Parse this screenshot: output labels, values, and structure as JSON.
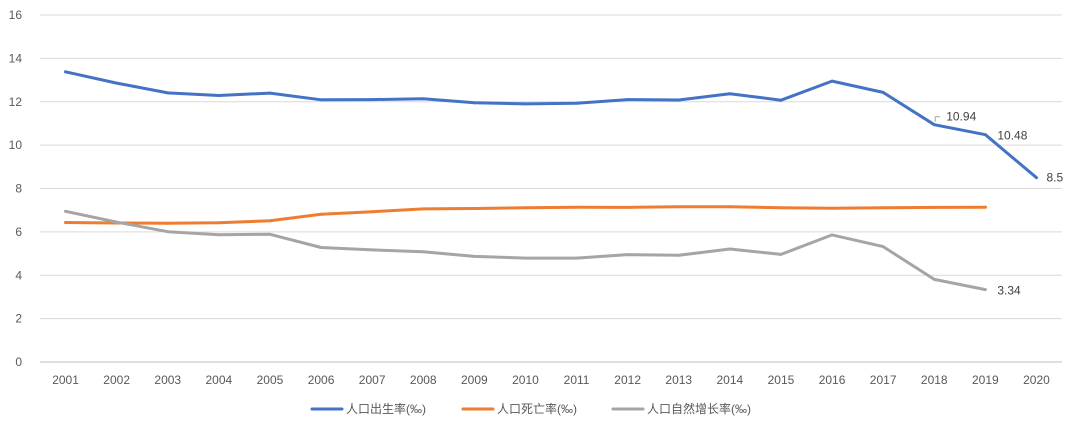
{
  "chart_data": {
    "type": "line",
    "title": "",
    "xlabel": "",
    "ylabel": "",
    "x": [
      "2001",
      "2002",
      "2003",
      "2004",
      "2005",
      "2006",
      "2007",
      "2008",
      "2009",
      "2010",
      "2011",
      "2012",
      "2013",
      "2014",
      "2015",
      "2016",
      "2017",
      "2018",
      "2019",
      "2020"
    ],
    "ylim": [
      0,
      16
    ],
    "yticks": [
      "0",
      "2",
      "4",
      "6",
      "8",
      "10",
      "12",
      "14",
      "16"
    ],
    "grid": "horizontal",
    "legend_position": "bottom",
    "series": [
      {
        "name": "人口出生率(‰)",
        "color": "#4472C4",
        "values": [
          13.38,
          12.86,
          12.41,
          12.29,
          12.4,
          12.09,
          12.1,
          12.14,
          11.95,
          11.9,
          11.93,
          12.1,
          12.08,
          12.37,
          12.07,
          12.95,
          12.43,
          10.94,
          10.48,
          8.5
        ]
      },
      {
        "name": "人口死亡率(‰)",
        "color": "#ED7D31",
        "values": [
          6.43,
          6.41,
          6.4,
          6.42,
          6.51,
          6.81,
          6.93,
          7.06,
          7.08,
          7.11,
          7.14,
          7.13,
          7.16,
          7.16,
          7.11,
          7.09,
          7.11,
          7.13,
          7.14,
          null
        ]
      },
      {
        "name": "人口自然增长率(‰)",
        "color": "#A5A5A5",
        "values": [
          6.95,
          6.45,
          6.01,
          5.87,
          5.89,
          5.28,
          5.17,
          5.08,
          4.87,
          4.79,
          4.79,
          4.95,
          4.92,
          5.21,
          4.96,
          5.86,
          5.32,
          3.81,
          3.34,
          null
        ]
      }
    ],
    "annotations": [
      {
        "series": 0,
        "x": "2018",
        "text": "10.94"
      },
      {
        "series": 0,
        "x": "2019",
        "text": "10.48"
      },
      {
        "series": 0,
        "x": "2020",
        "text": "8.5"
      },
      {
        "series": 2,
        "x": "2019",
        "text": "3.34"
      }
    ]
  }
}
